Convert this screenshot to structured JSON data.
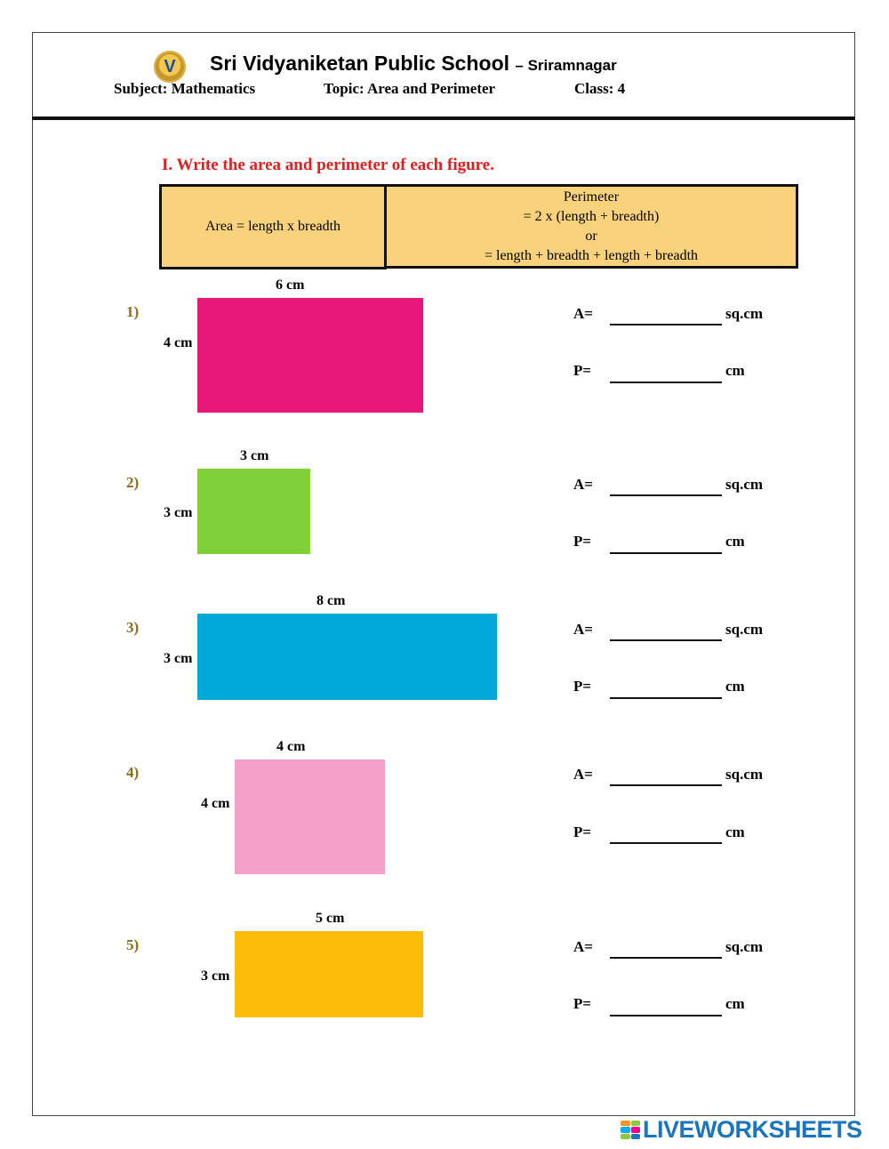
{
  "header": {
    "school_name": "Sri Vidyaniketan Public School",
    "location": "– Sriramnagar",
    "subject": "Subject: Mathematics",
    "topic": "Topic: Area and Perimeter",
    "class": "Class: 4",
    "logo_letter": "V"
  },
  "instruction": "I. Write the area and perimeter of each figure.",
  "formulas": {
    "area": "Area = length x breadth",
    "perimeter_title": "Perimeter",
    "perimeter_line1": "= 2 x (length + breadth)",
    "perimeter_or": "or",
    "perimeter_line2": "= length + breadth + length + breadth"
  },
  "answer_labels": {
    "area": "A=",
    "perimeter": "P=",
    "area_unit": "sq.cm",
    "perimeter_unit": "cm"
  },
  "figures": [
    {
      "number": "1)",
      "length_label": "6 cm",
      "breadth_label": "4 cm",
      "color": "#e8187a"
    },
    {
      "number": "2)",
      "length_label": "3 cm",
      "breadth_label": "3 cm",
      "color": "#7fd13b"
    },
    {
      "number": "3)",
      "length_label": "8 cm",
      "breadth_label": "3 cm",
      "color": "#00a8d8"
    },
    {
      "number": "4)",
      "length_label": "4 cm",
      "breadth_label": "4 cm",
      "color": "#f5a0c8"
    },
    {
      "number": "5)",
      "length_label": "5 cm",
      "breadth_label": "3 cm",
      "color": "#fbbd08"
    }
  ],
  "footer": {
    "brand": "LIVEWORKSHEETS"
  }
}
